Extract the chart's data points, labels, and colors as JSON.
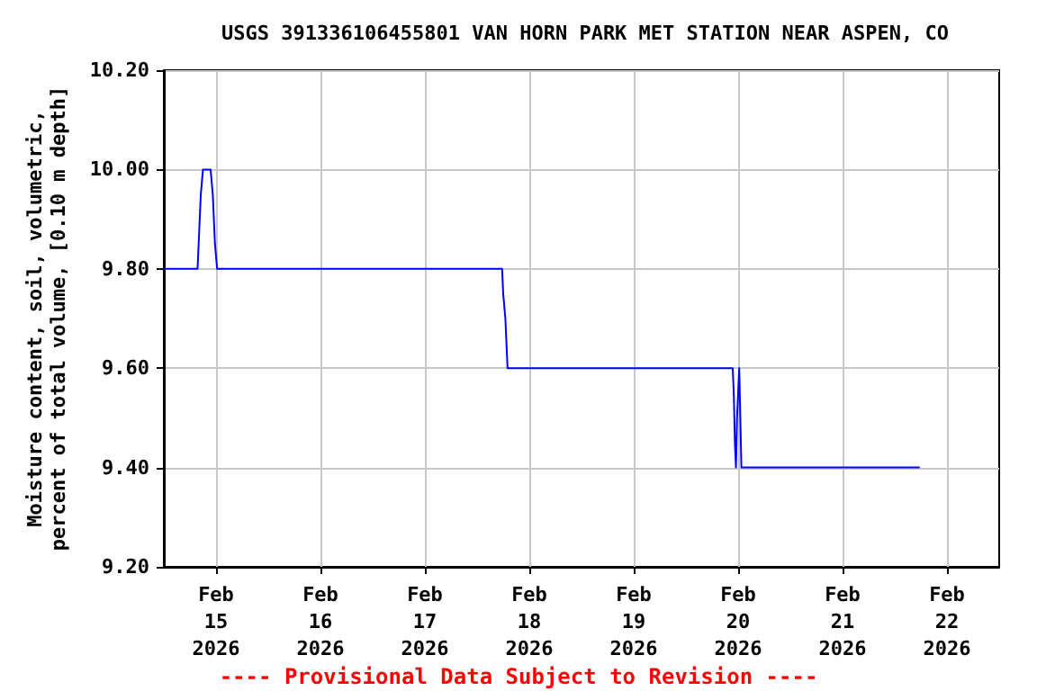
{
  "chart_data": {
    "type": "line",
    "title": "USGS 391336106455801 VAN HORN PARK MET STATION NEAR ASPEN, CO",
    "ylabel": "Moisture content, soil, volumetric,\npercent of total volume, [0.10 m depth]",
    "annotations": [
      "---- Provisional Data Subject to Revision ----"
    ],
    "series": [
      {
        "color": "#0000ff",
        "x": [
          "2026-02-14T12:00",
          "2026-02-14T19:45",
          "2026-02-14T20:00",
          "2026-02-14T20:15",
          "2026-02-14T20:30",
          "2026-02-14T21:00",
          "2026-02-14T22:45",
          "2026-02-14T23:15",
          "2026-02-14T23:45",
          "2026-02-15T00:15",
          "2026-02-17T17:45",
          "2026-02-17T18:00",
          "2026-02-17T18:30",
          "2026-02-17T19:00",
          "2026-02-19T22:45",
          "2026-02-19T23:00",
          "2026-02-19T23:15",
          "2026-02-19T23:30",
          "2026-02-19T23:45",
          "2026-02-20T00:15",
          "2026-02-20T00:30",
          "2026-02-20T00:45",
          "2026-02-21T17:45"
        ],
        "values": [
          9.8,
          9.8,
          9.85,
          9.9,
          9.95,
          10.0,
          10.0,
          9.95,
          9.85,
          9.8,
          9.8,
          9.75,
          9.7,
          9.6,
          9.6,
          9.55,
          9.45,
          9.4,
          9.5,
          9.6,
          9.5,
          9.4,
          9.4
        ]
      }
    ],
    "xlim": [
      "2026-02-14T12:00",
      "2026-02-22T12:00"
    ],
    "xticks": [
      {
        "value": "2026-02-15",
        "label": "Feb\n15\n2026"
      },
      {
        "value": "2026-02-16",
        "label": "Feb\n16\n2026"
      },
      {
        "value": "2026-02-17",
        "label": "Feb\n17\n2026"
      },
      {
        "value": "2026-02-18",
        "label": "Feb\n18\n2026"
      },
      {
        "value": "2026-02-19",
        "label": "Feb\n19\n2026"
      },
      {
        "value": "2026-02-20",
        "label": "Feb\n20\n2026"
      },
      {
        "value": "2026-02-21",
        "label": "Feb\n21\n2026"
      },
      {
        "value": "2026-02-22",
        "label": "Feb\n22\n2026"
      }
    ],
    "ylim": [
      9.2,
      10.2
    ],
    "yticks": [
      {
        "value": 9.2,
        "label": "9.20"
      },
      {
        "value": 9.4,
        "label": "9.40"
      },
      {
        "value": 9.6,
        "label": "9.60"
      },
      {
        "value": 9.8,
        "label": "9.80"
      },
      {
        "value": 10.0,
        "label": "10.00"
      },
      {
        "value": 10.2,
        "label": "10.20"
      }
    ],
    "grid": true,
    "marker": "none",
    "line_style": "solid"
  }
}
